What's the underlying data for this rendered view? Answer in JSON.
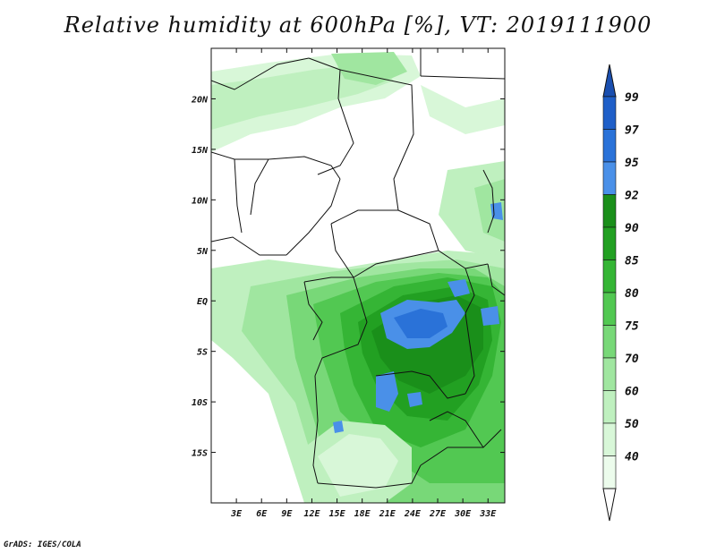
{
  "title": "Relative humidity at 600hPa [%], VT: 2019111900",
  "credit": "GrADS: IGES/COLA",
  "map": {
    "lon_range": [
      0,
      35
    ],
    "lat_range": [
      -20,
      25
    ],
    "lat_ticks": [
      {
        "value": 20,
        "label": "20N"
      },
      {
        "value": 15,
        "label": "15N"
      },
      {
        "value": 10,
        "label": "10N"
      },
      {
        "value": 5,
        "label": "5N"
      },
      {
        "value": 0,
        "label": "EQ"
      },
      {
        "value": -5,
        "label": "5S"
      },
      {
        "value": -10,
        "label": "10S"
      },
      {
        "value": -15,
        "label": "15S"
      }
    ],
    "lon_ticks": [
      {
        "value": 3,
        "label": "3E"
      },
      {
        "value": 6,
        "label": "6E"
      },
      {
        "value": 9,
        "label": "9E"
      },
      {
        "value": 12,
        "label": "12E"
      },
      {
        "value": 15,
        "label": "15E"
      },
      {
        "value": 18,
        "label": "18E"
      },
      {
        "value": 21,
        "label": "21E"
      },
      {
        "value": 24,
        "label": "24E"
      },
      {
        "value": 27,
        "label": "27E"
      },
      {
        "value": 30,
        "label": "30E"
      },
      {
        "value": 33,
        "label": "33E"
      }
    ]
  },
  "colorbar": {
    "levels": [
      {
        "label": "99",
        "color": "#1f5fc8"
      },
      {
        "label": "97",
        "color": "#2a72d8"
      },
      {
        "label": "95",
        "color": "#4a90e8"
      },
      {
        "label": "92",
        "color": "#1a8f1a"
      },
      {
        "label": "90",
        "color": "#22a022"
      },
      {
        "label": "85",
        "color": "#35b535"
      },
      {
        "label": "80",
        "color": "#52c852"
      },
      {
        "label": "75",
        "color": "#78d878"
      },
      {
        "label": "70",
        "color": "#a0e6a0"
      },
      {
        "label": "60",
        "color": "#bff0bf"
      },
      {
        "label": "50",
        "color": "#d8f7d8"
      },
      {
        "label": "40",
        "color": "#ecfcec"
      }
    ],
    "top_arrow_color": "#1a4fb0",
    "bottom_arrow_color": "#ffffff"
  }
}
